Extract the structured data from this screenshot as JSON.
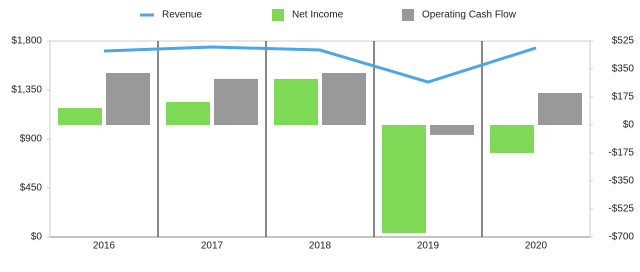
{
  "chart_data": {
    "type": "bar",
    "categories": [
      "2016",
      "2017",
      "2018",
      "2019",
      "2020"
    ],
    "series": [
      {
        "name": "Revenue",
        "type": "line",
        "color": "#4da6e8",
        "axis": "y",
        "values": [
          1708,
          1745,
          1717,
          1423,
          1736
        ]
      },
      {
        "name": "Net Income",
        "type": "bar",
        "color": "#7ed957",
        "axis": "y2",
        "values": [
          106,
          144,
          288,
          -675,
          -175
        ]
      },
      {
        "name": "Operating Cash Flow",
        "type": "bar",
        "color": "#999999",
        "axis": "y2",
        "values": [
          325,
          288,
          325,
          -62,
          200
        ]
      }
    ],
    "ylim": [
      0,
      1800
    ],
    "yticks": [
      {
        "value": 0,
        "label": "$0"
      },
      {
        "value": 450,
        "label": "$450"
      },
      {
        "value": 900,
        "label": "$900"
      },
      {
        "value": 1350,
        "label": "$1,350"
      },
      {
        "value": 1800,
        "label": "$1,800"
      }
    ],
    "y2lim": [
      -700,
      525
    ],
    "y2ticks": [
      {
        "value": -700,
        "label": "-$700"
      },
      {
        "value": -525,
        "label": "-$525"
      },
      {
        "value": -350,
        "label": "-$350"
      },
      {
        "value": -175,
        "label": "-$175"
      },
      {
        "value": 0,
        "label": "$0"
      },
      {
        "value": 175,
        "label": "$175"
      },
      {
        "value": 350,
        "label": "$350"
      },
      {
        "value": 525,
        "label": "$525"
      }
    ],
    "legend": "top"
  }
}
